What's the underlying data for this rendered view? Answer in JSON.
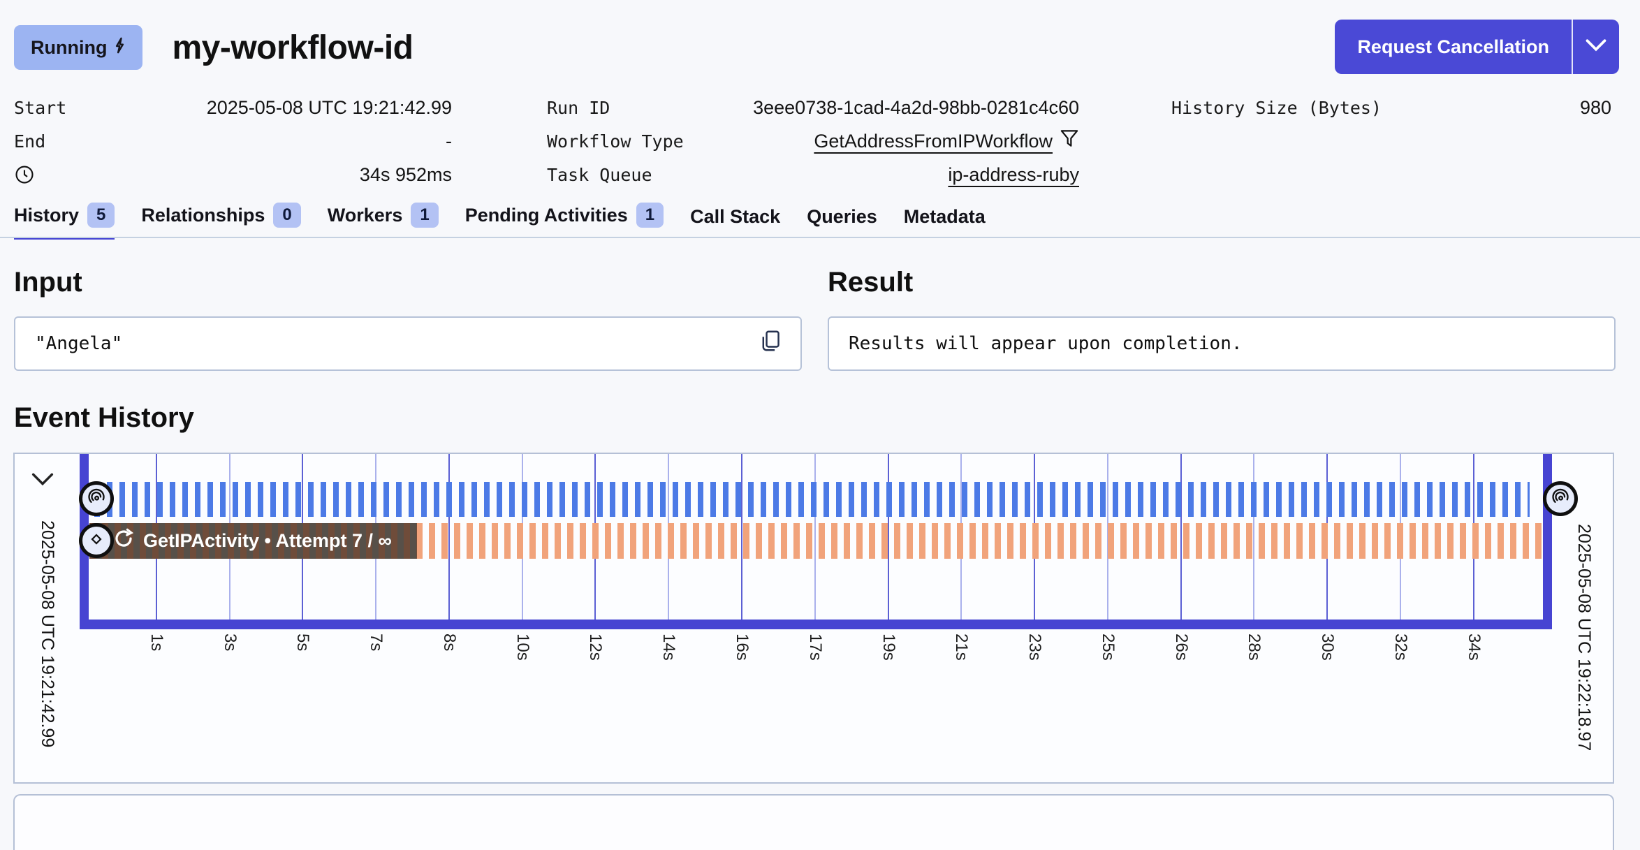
{
  "header": {
    "status_badge": "Running",
    "title": "my-workflow-id",
    "cancel_button_label": "Request Cancellation",
    "accent_color": "#4645d4",
    "badge_bg": "#9cb4f2"
  },
  "metadata": {
    "columns": [
      {
        "rows": [
          {
            "label": "Start",
            "value": "2025-05-08 UTC 19:21:42.99"
          },
          {
            "label": "End",
            "value": "-"
          },
          {
            "label": "",
            "icon": "clock-icon",
            "value": "34s 952ms"
          }
        ]
      },
      {
        "rows": [
          {
            "label": "Run ID",
            "value": "3eee0738-1cad-4a2d-98bb-0281c4c60"
          },
          {
            "label": "Workflow Type",
            "value": "GetAddressFromIPWorkflow",
            "link": true,
            "trailing_icon": "filter-icon"
          },
          {
            "label": "Task Queue",
            "value": "ip-address-ruby",
            "link": true
          }
        ]
      },
      {
        "rows": [
          {
            "label": "History Size (Bytes)",
            "value": "980"
          }
        ]
      }
    ]
  },
  "tabs": [
    {
      "label": "History",
      "count": "5",
      "active": true
    },
    {
      "label": "Relationships",
      "count": "0"
    },
    {
      "label": "Workers",
      "count": "1"
    },
    {
      "label": "Pending Activities",
      "count": "1"
    },
    {
      "label": "Call Stack"
    },
    {
      "label": "Queries"
    },
    {
      "label": "Metadata"
    }
  ],
  "io": {
    "input_heading": "Input",
    "input_value": "\"Angela\"",
    "result_heading": "Result",
    "result_placeholder": "Results will appear upon completion."
  },
  "event_history": {
    "heading": "Event History",
    "range_start": "2025-05-08 UTC 19:21:42.99",
    "range_end": "2025-05-08 UTC 19:22:18.97",
    "activity_bar_label": "GetIPActivity • Attempt 7 / ∞",
    "tick_labels": [
      "1s",
      "3s",
      "5s",
      "7s",
      "8s",
      "10s",
      "12s",
      "14s",
      "16s",
      "17s",
      "19s",
      "21s",
      "23s",
      "25s",
      "26s",
      "28s",
      "30s",
      "32s",
      "34s"
    ],
    "colors": {
      "workflow_dash": "#4c7ae6",
      "activity_dash": "#f1a37b",
      "frame": "#4744d2",
      "grid_dark": "#5c60d4",
      "grid_light": "#aab1ec"
    }
  }
}
